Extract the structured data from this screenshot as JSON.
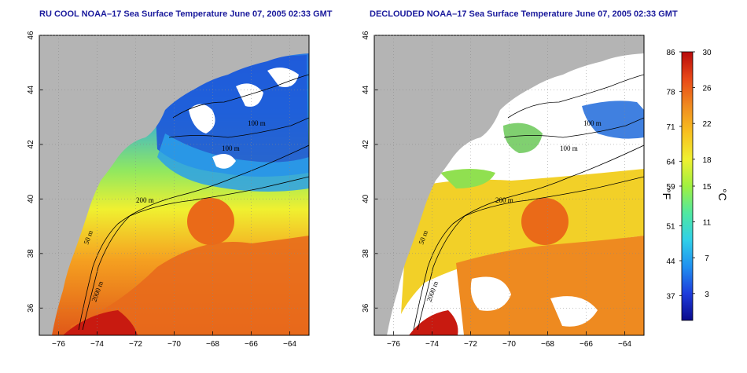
{
  "panels": [
    {
      "title": "RU COOL NOAA–17 Sea Surface Temperature June 07, 2005 02:33 GMT"
    },
    {
      "title": "DECLOUDED NOAA–17 Sea Surface Temperature June 07, 2005 02:33 GMT"
    }
  ],
  "axes": {
    "lon_ticks": [
      "−76",
      "−74",
      "−72",
      "−70",
      "−68",
      "−66",
      "−64"
    ],
    "lat_ticks": [
      "36",
      "38",
      "40",
      "42",
      "44",
      "46"
    ],
    "lon_range": [
      -77,
      -63
    ],
    "lat_range": [
      35,
      46
    ]
  },
  "contour_labels": [
    "100 m",
    "100 m",
    "200 m",
    "50 m",
    "2000 m"
  ],
  "colorbar": {
    "f_ticks": [
      "86",
      "78",
      "71",
      "64",
      "59",
      "51",
      "44",
      "37"
    ],
    "c_ticks": [
      "30",
      "26",
      "22",
      "18",
      "15",
      "11",
      "7",
      "3"
    ],
    "f_unit": "°F",
    "c_unit": "°C",
    "c_range": [
      0,
      30
    ],
    "colors": [
      "#0a0a8c",
      "#1e3cdc",
      "#2090f0",
      "#30d0e8",
      "#50e8a0",
      "#a0f040",
      "#f0f030",
      "#f8c020",
      "#f08a20",
      "#e84818",
      "#b80a0a"
    ]
  },
  "colors": {
    "land": "#b4b4b4",
    "cloud": "#ffffff",
    "title": "#1a1a9c"
  }
}
